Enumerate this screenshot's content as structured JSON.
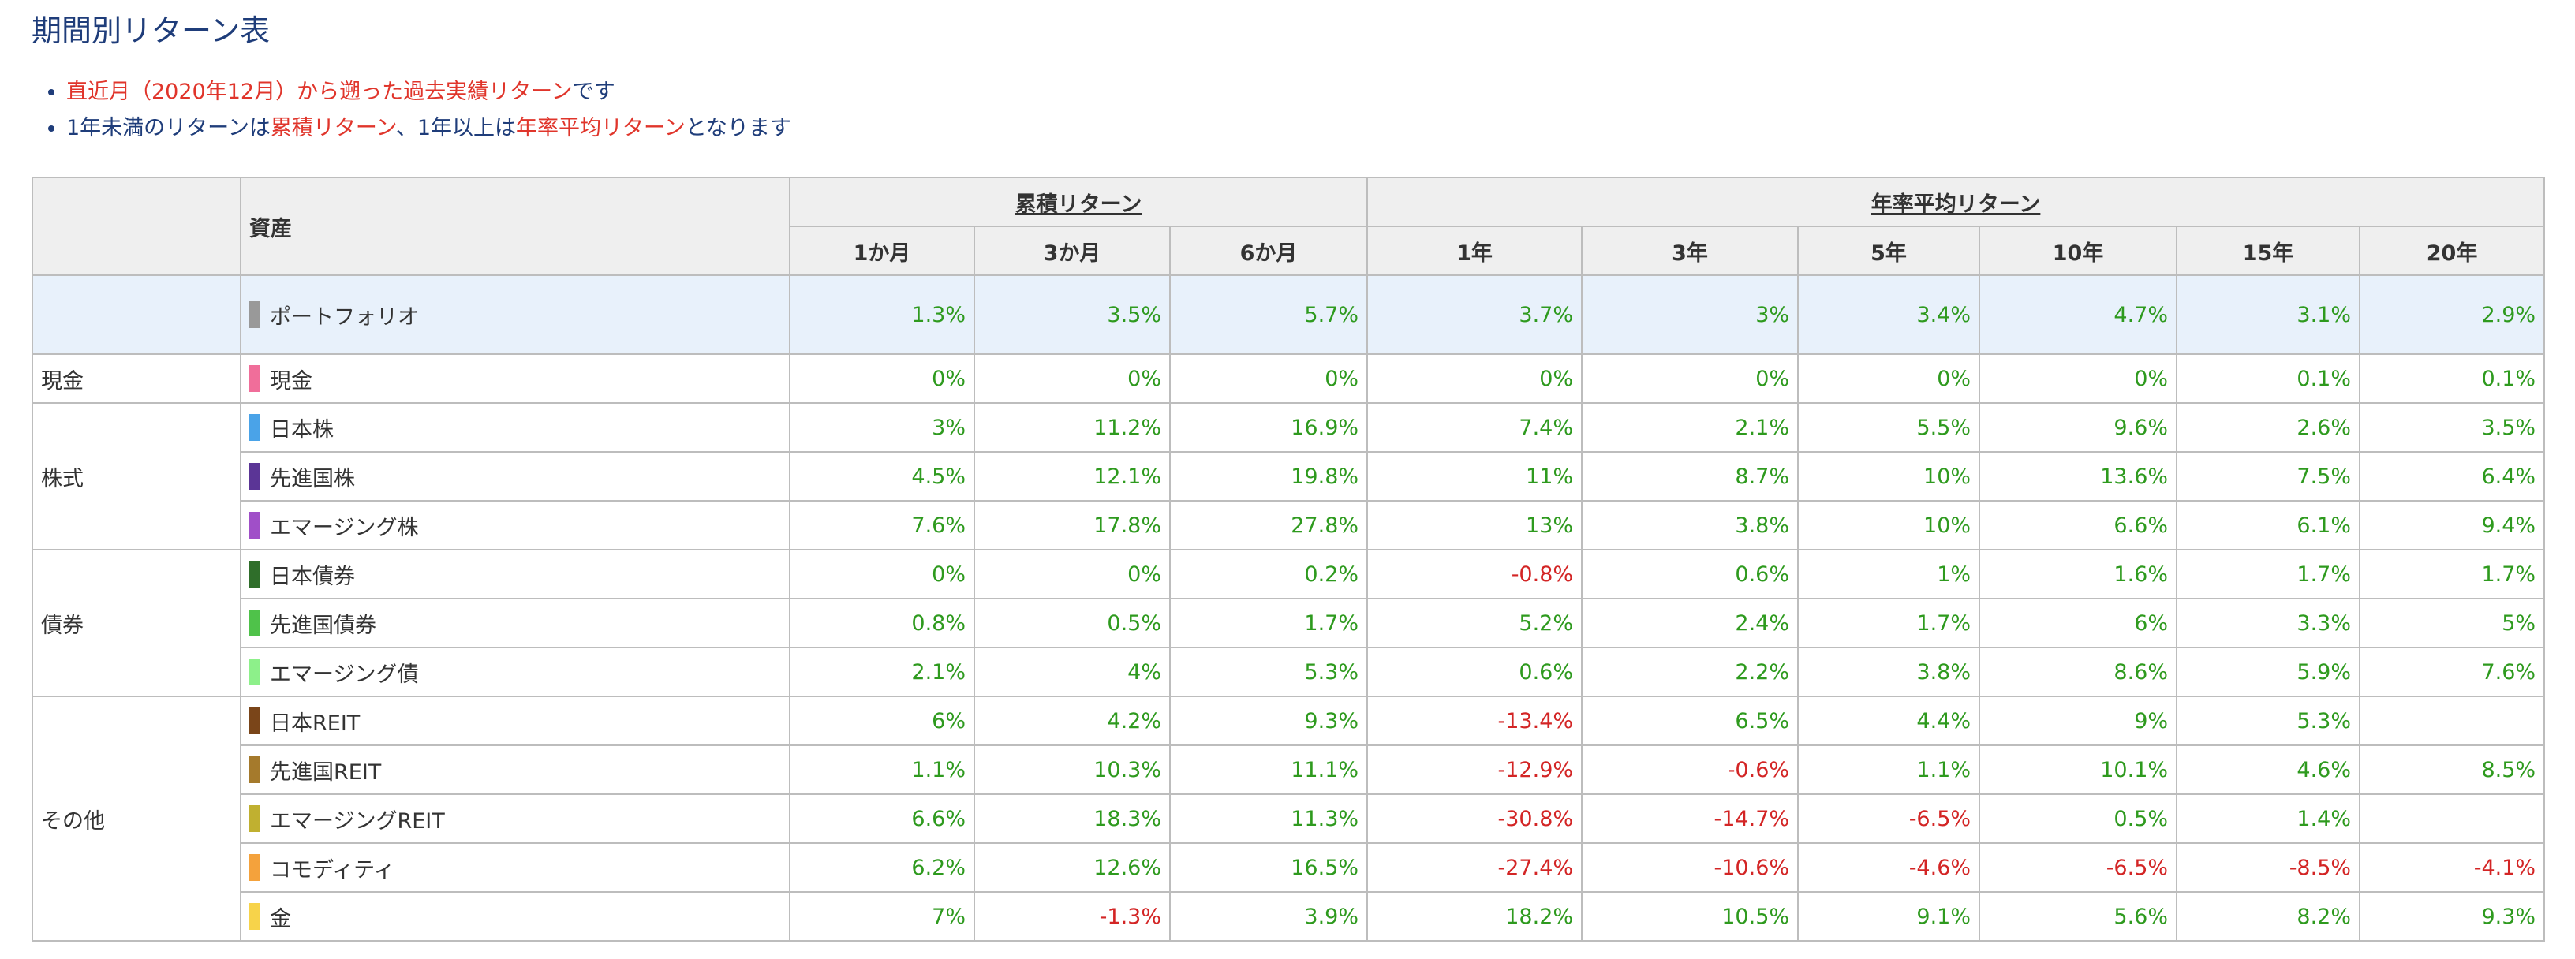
{
  "title": "期間別リターン表",
  "notes": [
    {
      "parts": [
        {
          "text": "直近月（2020年12月）から遡った過去実績リターン",
          "hl": true
        },
        {
          "text": "です",
          "hl": false
        }
      ]
    },
    {
      "parts": [
        {
          "text": "1年未満のリターンは",
          "hl": false
        },
        {
          "text": "累積リターン",
          "hl": true
        },
        {
          "text": "、1年以上は",
          "hl": false
        },
        {
          "text": "年率平均リターン",
          "hl": true
        },
        {
          "text": "となります",
          "hl": false
        }
      ]
    }
  ],
  "table": {
    "asset_header": "資産",
    "group_cumulative": "累積リターン",
    "group_annual": "年率平均リターン",
    "periods": [
      "1か月",
      "3か月",
      "6か月",
      "1年",
      "3年",
      "5年",
      "10年",
      "15年",
      "20年"
    ],
    "portfolio": {
      "name": "ポートフォリオ",
      "color": "#999999",
      "values": [
        "1.3%",
        "3.5%",
        "5.7%",
        "3.7%",
        "3%",
        "3.4%",
        "4.7%",
        "3.1%",
        "2.9%"
      ]
    },
    "categories": [
      {
        "label": "現金",
        "rows": [
          {
            "name": "現金",
            "color": "#f06e9a",
            "values": [
              "0%",
              "0%",
              "0%",
              "0%",
              "0%",
              "0%",
              "0%",
              "0.1%",
              "0.1%"
            ]
          }
        ]
      },
      {
        "label": "株式",
        "rows": [
          {
            "name": "日本株",
            "color": "#4aa3e8",
            "values": [
              "3%",
              "11.2%",
              "16.9%",
              "7.4%",
              "2.1%",
              "5.5%",
              "9.6%",
              "2.6%",
              "3.5%"
            ]
          },
          {
            "name": "先進国株",
            "color": "#5b3596",
            "values": [
              "4.5%",
              "12.1%",
              "19.8%",
              "11%",
              "8.7%",
              "10%",
              "13.6%",
              "7.5%",
              "6.4%"
            ]
          },
          {
            "name": "エマージング株",
            "color": "#a04fc8",
            "values": [
              "7.6%",
              "17.8%",
              "27.8%",
              "13%",
              "3.8%",
              "10%",
              "6.6%",
              "6.1%",
              "9.4%"
            ]
          }
        ]
      },
      {
        "label": "債券",
        "rows": [
          {
            "name": "日本債券",
            "color": "#2f6e2a",
            "values": [
              "0%",
              "0%",
              "0.2%",
              "-0.8%",
              "0.6%",
              "1%",
              "1.6%",
              "1.7%",
              "1.7%"
            ]
          },
          {
            "name": "先進国債券",
            "color": "#4fc24a",
            "values": [
              "0.8%",
              "0.5%",
              "1.7%",
              "5.2%",
              "2.4%",
              "1.7%",
              "6%",
              "3.3%",
              "5%"
            ]
          },
          {
            "name": "エマージング債",
            "color": "#8df08a",
            "values": [
              "2.1%",
              "4%",
              "5.3%",
              "0.6%",
              "2.2%",
              "3.8%",
              "8.6%",
              "5.9%",
              "7.6%"
            ]
          }
        ]
      },
      {
        "label": "その他",
        "rows": [
          {
            "name": "日本REIT",
            "color": "#7a4519",
            "values": [
              "6%",
              "4.2%",
              "9.3%",
              "-13.4%",
              "6.5%",
              "4.4%",
              "9%",
              "5.3%",
              ""
            ]
          },
          {
            "name": "先進国REIT",
            "color": "#a57a2c",
            "values": [
              "1.1%",
              "10.3%",
              "11.1%",
              "-12.9%",
              "-0.6%",
              "1.1%",
              "10.1%",
              "4.6%",
              "8.5%"
            ]
          },
          {
            "name": "エマージングREIT",
            "color": "#c0b030",
            "values": [
              "6.6%",
              "18.3%",
              "11.3%",
              "-30.8%",
              "-14.7%",
              "-6.5%",
              "0.5%",
              "1.4%",
              ""
            ]
          },
          {
            "name": "コモディティ",
            "color": "#f4a23c",
            "values": [
              "6.2%",
              "12.6%",
              "16.5%",
              "-27.4%",
              "-10.6%",
              "-4.6%",
              "-6.5%",
              "-8.5%",
              "-4.1%"
            ]
          },
          {
            "name": "金",
            "color": "#f7d34a",
            "values": [
              "7%",
              "-1.3%",
              "3.9%",
              "18.2%",
              "10.5%",
              "9.1%",
              "5.6%",
              "8.2%",
              "9.3%"
            ]
          }
        ]
      }
    ]
  }
}
